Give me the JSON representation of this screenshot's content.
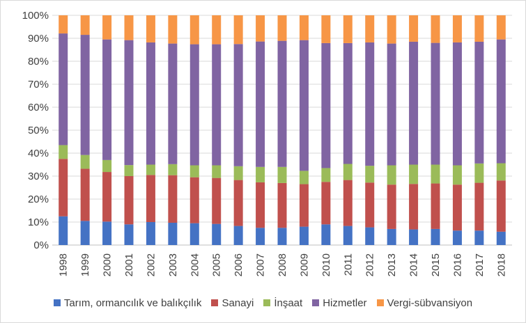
{
  "chart_data": {
    "type": "bar",
    "stacked": true,
    "percent": true,
    "title": "",
    "xlabel": "",
    "ylabel": "",
    "ylim": [
      0,
      100
    ],
    "yticks": [
      "0%",
      "10%",
      "20%",
      "30%",
      "40%",
      "50%",
      "60%",
      "70%",
      "80%",
      "90%",
      "100%"
    ],
    "grid": true,
    "legend_position": "bottom",
    "categories": [
      "1998",
      "1999",
      "2000",
      "2001",
      "2002",
      "2003",
      "2004",
      "2005",
      "2006",
      "2007",
      "2008",
      "2009",
      "2010",
      "2011",
      "2012",
      "2013",
      "2014",
      "2015",
      "2016",
      "2017",
      "2018"
    ],
    "series": [
      {
        "name": "Tarım, ormancılık ve balıkçılık",
        "color": "#4472c4",
        "values": [
          12.5,
          10.5,
          10.2,
          9.0,
          10.0,
          9.7,
          9.5,
          9.2,
          8.3,
          7.5,
          7.5,
          8.0,
          9.0,
          8.3,
          7.7,
          7.0,
          6.8,
          7.0,
          6.3,
          6.3,
          5.8
        ]
      },
      {
        "name": "Sanayi",
        "color": "#c0504d",
        "values": [
          25.0,
          22.7,
          21.6,
          21.0,
          20.5,
          20.7,
          20.0,
          20.0,
          20.0,
          19.8,
          19.5,
          18.5,
          18.5,
          20.0,
          19.5,
          19.3,
          19.8,
          19.8,
          20.0,
          20.8,
          22.3
        ]
      },
      {
        "name": "İnşaat",
        "color": "#9bbb59",
        "values": [
          6.0,
          6.0,
          5.2,
          4.8,
          4.5,
          4.8,
          5.2,
          5.5,
          6.0,
          6.7,
          7.0,
          5.8,
          6.0,
          7.0,
          7.3,
          8.4,
          8.4,
          8.2,
          8.4,
          8.4,
          7.5
        ]
      },
      {
        "name": "Hizmetler",
        "color": "#8064a2",
        "values": [
          48.6,
          52.3,
          52.5,
          54.4,
          53.2,
          52.5,
          52.7,
          52.7,
          53.2,
          54.6,
          54.9,
          56.9,
          54.4,
          52.6,
          53.7,
          53.0,
          53.5,
          53.0,
          53.5,
          53.0,
          53.9
        ]
      },
      {
        "name": "Vergi-sübvansiyon",
        "color": "#f79646",
        "values": [
          7.9,
          8.5,
          10.5,
          10.8,
          11.8,
          12.3,
          12.6,
          12.6,
          12.5,
          11.4,
          11.1,
          10.8,
          12.1,
          12.1,
          11.8,
          12.3,
          11.5,
          12.0,
          11.8,
          11.5,
          10.5
        ]
      }
    ]
  }
}
